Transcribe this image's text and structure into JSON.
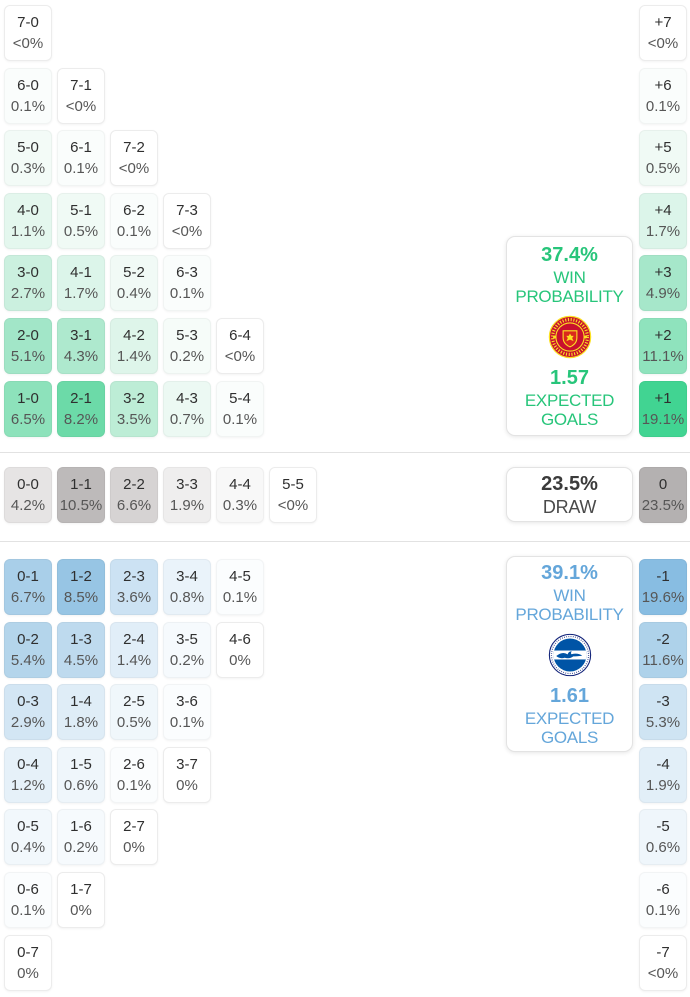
{
  "panels": {
    "home": {
      "win_probability": "37.4%",
      "win_label": "WIN PROBABILITY",
      "expected_goals": "1.57",
      "goals_label": "EXPECTED GOALS",
      "crest_icon": "manchester-united-crest",
      "accent_color": "#27c57a"
    },
    "draw": {
      "probability": "23.5%",
      "label": "DRAW"
    },
    "away": {
      "win_probability": "39.1%",
      "win_label": "WIN PROBABILITY",
      "expected_goals": "1.61",
      "goals_label": "EXPECTED GOALS",
      "crest_icon": "brighton-hove-albion-crest",
      "accent_color": "#64a6da"
    }
  },
  "score_grid": {
    "home_win_rows": [
      [
        {
          "score": "7-0",
          "probability": "<0%",
          "color": "#ffffff"
        }
      ],
      [
        {
          "score": "6-0",
          "probability": "0.1%",
          "color": "#fafdfc"
        },
        {
          "score": "7-1",
          "probability": "<0%",
          "color": "#ffffff"
        }
      ],
      [
        {
          "score": "5-0",
          "probability": "0.3%",
          "color": "#f3fbf7"
        },
        {
          "score": "6-1",
          "probability": "0.1%",
          "color": "#fafdfc"
        },
        {
          "score": "7-2",
          "probability": "<0%",
          "color": "#ffffff"
        }
      ],
      [
        {
          "score": "4-0",
          "probability": "1.1%",
          "color": "#e4f7ee"
        },
        {
          "score": "5-1",
          "probability": "0.5%",
          "color": "#f0faf5"
        },
        {
          "score": "6-2",
          "probability": "0.1%",
          "color": "#fafdfc"
        },
        {
          "score": "7-3",
          "probability": "<0%",
          "color": "#ffffff"
        }
      ],
      [
        {
          "score": "3-0",
          "probability": "2.7%",
          "color": "#cbf0df"
        },
        {
          "score": "4-1",
          "probability": "1.7%",
          "color": "#dcf5ea"
        },
        {
          "score": "5-2",
          "probability": "0.4%",
          "color": "#f1faf6"
        },
        {
          "score": "6-3",
          "probability": "0.1%",
          "color": "#fafdfc"
        }
      ],
      [
        {
          "score": "2-0",
          "probability": "5.1%",
          "color": "#a2e6c8"
        },
        {
          "score": "3-1",
          "probability": "4.3%",
          "color": "#aee9ce"
        },
        {
          "score": "4-2",
          "probability": "1.4%",
          "color": "#def5ea"
        },
        {
          "score": "5-3",
          "probability": "0.2%",
          "color": "#f6fcf9"
        },
        {
          "score": "6-4",
          "probability": "<0%",
          "color": "#ffffff"
        }
      ],
      [
        {
          "score": "1-0",
          "probability": "6.5%",
          "color": "#8de2bb"
        },
        {
          "score": "2-1",
          "probability": "8.2%",
          "color": "#6cdaa8"
        },
        {
          "score": "3-2",
          "probability": "3.5%",
          "color": "#bdedd6"
        },
        {
          "score": "4-3",
          "probability": "0.7%",
          "color": "#ecf9f3"
        },
        {
          "score": "5-4",
          "probability": "0.1%",
          "color": "#fafdfc"
        }
      ]
    ],
    "draw_row": [
      {
        "score": "0-0",
        "probability": "4.2%",
        "color": "#e6e4e4"
      },
      {
        "score": "1-1",
        "probability": "10.5%",
        "color": "#bdbaba"
      },
      {
        "score": "2-2",
        "probability": "6.6%",
        "color": "#d6d3d3"
      },
      {
        "score": "3-3",
        "probability": "1.9%",
        "color": "#efeeee"
      },
      {
        "score": "4-4",
        "probability": "0.3%",
        "color": "#f8f8f8"
      },
      {
        "score": "5-5",
        "probability": "<0%",
        "color": "#ffffff"
      }
    ],
    "away_win_rows": [
      [
        {
          "score": "0-1",
          "probability": "6.7%",
          "color": "#a9cfe9"
        },
        {
          "score": "1-2",
          "probability": "8.5%",
          "color": "#97c5e4"
        },
        {
          "score": "2-3",
          "probability": "3.6%",
          "color": "#cce2f3"
        },
        {
          "score": "3-4",
          "probability": "0.8%",
          "color": "#eaf3fa"
        },
        {
          "score": "4-5",
          "probability": "0.1%",
          "color": "#fbfdfe"
        }
      ],
      [
        {
          "score": "0-2",
          "probability": "5.4%",
          "color": "#b4d5eb"
        },
        {
          "score": "1-3",
          "probability": "4.5%",
          "color": "#bedaee"
        },
        {
          "score": "2-4",
          "probability": "1.4%",
          "color": "#e1eef8"
        },
        {
          "score": "3-5",
          "probability": "0.2%",
          "color": "#f6fafd"
        },
        {
          "score": "4-6",
          "probability": "0%",
          "color": "#ffffff"
        }
      ],
      [
        {
          "score": "0-3",
          "probability": "2.9%",
          "color": "#d3e6f4"
        },
        {
          "score": "1-4",
          "probability": "1.8%",
          "color": "#dfedf7"
        },
        {
          "score": "2-5",
          "probability": "0.5%",
          "color": "#f0f7fb"
        },
        {
          "score": "3-6",
          "probability": "0.1%",
          "color": "#fbfdfe"
        }
      ],
      [
        {
          "score": "0-4",
          "probability": "1.2%",
          "color": "#e6f1f9"
        },
        {
          "score": "1-5",
          "probability": "0.6%",
          "color": "#eff6fb"
        },
        {
          "score": "2-6",
          "probability": "0.1%",
          "color": "#fbfdfe"
        },
        {
          "score": "3-7",
          "probability": "0%",
          "color": "#ffffff"
        }
      ],
      [
        {
          "score": "0-5",
          "probability": "0.4%",
          "color": "#f2f8fc"
        },
        {
          "score": "1-6",
          "probability": "0.2%",
          "color": "#f6fafd"
        },
        {
          "score": "2-7",
          "probability": "0%",
          "color": "#ffffff"
        }
      ],
      [
        {
          "score": "0-6",
          "probability": "0.1%",
          "color": "#fbfdfe"
        },
        {
          "score": "1-7",
          "probability": "0%",
          "color": "#ffffff"
        }
      ],
      [
        {
          "score": "0-7",
          "probability": "0%",
          "color": "#ffffff"
        }
      ]
    ]
  },
  "goal_margin_column": {
    "home": [
      {
        "margin": "+7",
        "probability": "<0%",
        "color": "#ffffff"
      },
      {
        "margin": "+6",
        "probability": "0.1%",
        "color": "#fafdfc"
      },
      {
        "margin": "+5",
        "probability": "0.5%",
        "color": "#f0faf5"
      },
      {
        "margin": "+4",
        "probability": "1.7%",
        "color": "#dcf5ea"
      },
      {
        "margin": "+3",
        "probability": "4.9%",
        "color": "#a6e7ca"
      },
      {
        "margin": "+2",
        "probability": "11.1%",
        "color": "#8fe3bd"
      },
      {
        "margin": "+1",
        "probability": "19.1%",
        "color": "#41d492"
      }
    ],
    "draw": {
      "margin": "0",
      "probability": "23.5%",
      "color": "#b4b1b1"
    },
    "away": [
      {
        "margin": "-1",
        "probability": "19.6%",
        "color": "#88bde2"
      },
      {
        "margin": "-2",
        "probability": "11.6%",
        "color": "#aed2ea"
      },
      {
        "margin": "-3",
        "probability": "5.3%",
        "color": "#cfe4f3"
      },
      {
        "margin": "-4",
        "probability": "1.9%",
        "color": "#e2eff8"
      },
      {
        "margin": "-5",
        "probability": "0.6%",
        "color": "#eff6fb"
      },
      {
        "margin": "-6",
        "probability": "0.1%",
        "color": "#fbfdfe"
      },
      {
        "margin": "-7",
        "probability": "<0%",
        "color": "#ffffff"
      }
    ]
  }
}
